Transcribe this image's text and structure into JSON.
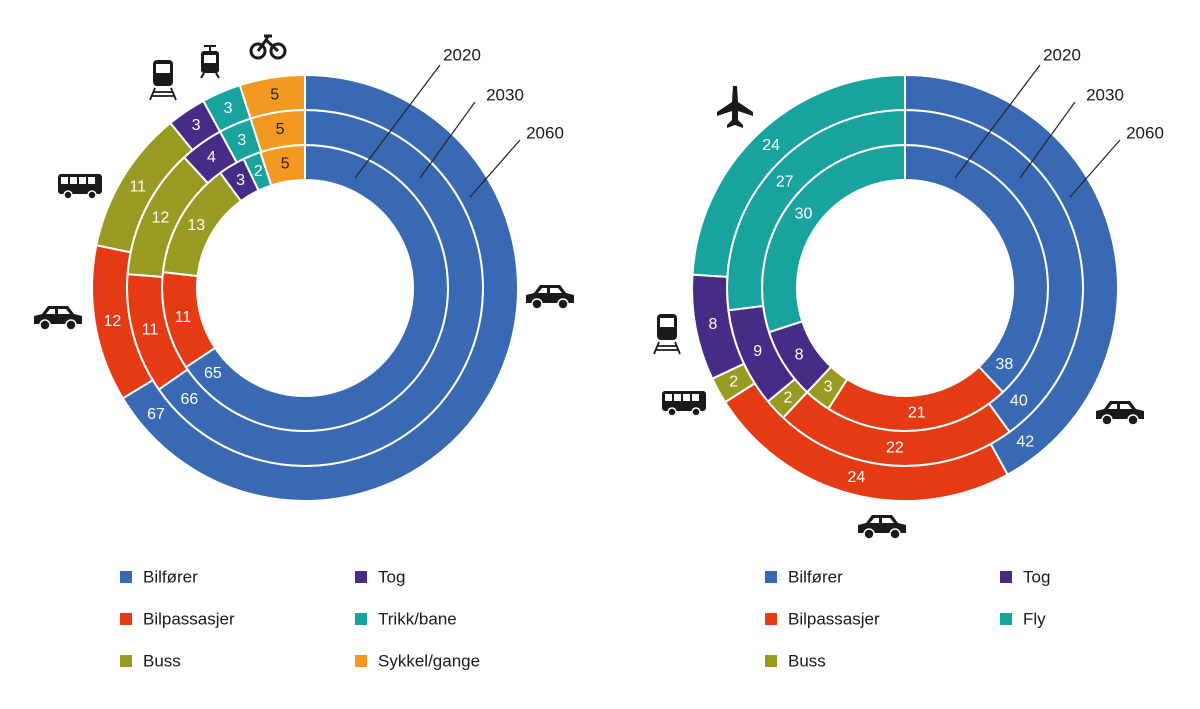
{
  "colors": {
    "Bilfører": "#3a69b3",
    "Bilpassasjer": "#e53b14",
    "Buss": "#999a22",
    "Tog": "#472c87",
    "Trikk/bane": "#19a39e",
    "Sykkel/gange": "#f3991f",
    "Fly": "#19a39e"
  },
  "chart_data": [
    {
      "type": "pie",
      "subtype": "multi-ring donut",
      "rings": [
        "2020",
        "2030",
        "2060"
      ],
      "ring_order": "inner to outer",
      "categories": [
        "Bilfører",
        "Bilpassasjer",
        "Buss",
        "Tog",
        "Trikk/bane",
        "Sykkel/gange"
      ],
      "series": [
        {
          "name": "2020",
          "values": [
            65,
            11,
            13,
            3,
            2,
            5
          ]
        },
        {
          "name": "2030",
          "values": [
            66,
            11,
            12,
            4,
            3,
            5
          ]
        },
        {
          "name": "2060",
          "values": [
            67,
            12,
            11,
            3,
            3,
            5
          ]
        }
      ],
      "legend": [
        "Bilfører",
        "Tog",
        "Bilpassasjer",
        "Trikk/bane",
        "Buss",
        "Sykkel/gange"
      ],
      "legend_placement": "bottom"
    },
    {
      "type": "pie",
      "subtype": "multi-ring donut",
      "rings": [
        "2020",
        "2030",
        "2060"
      ],
      "ring_order": "inner to outer",
      "categories": [
        "Bilfører",
        "Bilpassasjer",
        "Buss",
        "Tog",
        "Fly"
      ],
      "series": [
        {
          "name": "2020",
          "values": [
            38,
            21,
            3,
            8,
            30
          ]
        },
        {
          "name": "2030",
          "values": [
            40,
            22,
            2,
            9,
            27
          ]
        },
        {
          "name": "2060",
          "values": [
            42,
            24,
            2,
            8,
            24
          ]
        }
      ],
      "legend": [
        "Bilfører",
        "Tog",
        "Bilpassasjer",
        "Fly",
        "Buss"
      ],
      "legend_placement": "bottom"
    }
  ]
}
